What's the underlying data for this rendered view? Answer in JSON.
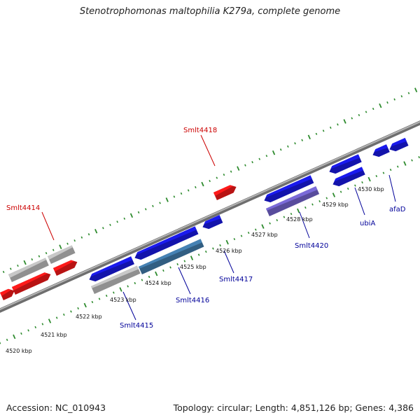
{
  "title": "Stenotrophomonas maltophilia K279a, complete genome",
  "accession": "Accession: NC_010943",
  "summary": "Topology: circular; Length: 4,851,126 bp; Genes: 4,386",
  "colors": {
    "backbone": "#8a8a8a",
    "tick": "#2e8b2e",
    "forward_gene": "#ff1a1a",
    "forward_pseudo": "#c8c8c8",
    "reverse_gene": "#1a1aee",
    "reverse_highlight": "#4682b4",
    "reverse_light": "#7a6ad8",
    "forward_label": "#cc0000",
    "reverse_label": "#000099",
    "kbp_label": "#111111"
  },
  "scale": {
    "kbp_labels": [
      "4520 kbp",
      "4521 kbp",
      "4522 kbp",
      "4523 kbp",
      "4524 kbp",
      "4525 kbp",
      "4526 kbp",
      "4527 kbp",
      "4528 kbp",
      "4529 kbp",
      "4530 kbp"
    ]
  },
  "gene_labels": {
    "forward": [
      "Smlt4414",
      "Smlt4418"
    ],
    "reverse": [
      "Smlt4415",
      "Smlt4416",
      "Smlt4417",
      "Smlt4420",
      "ubiA",
      "afaD"
    ]
  }
}
